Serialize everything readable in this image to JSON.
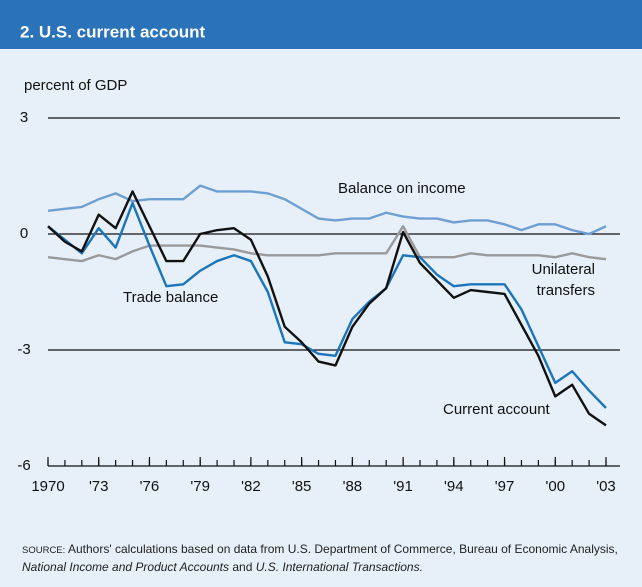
{
  "chart_data": {
    "type": "line",
    "title": "2. U.S. current account",
    "ylabel": "percent of GDP",
    "x": [
      1970,
      1971,
      1972,
      1973,
      1974,
      1975,
      1976,
      1977,
      1978,
      1979,
      1980,
      1981,
      1982,
      1983,
      1984,
      1985,
      1986,
      1987,
      1988,
      1989,
      1990,
      1991,
      1992,
      1993,
      1994,
      1995,
      1996,
      1997,
      1998,
      1999,
      2000,
      2001,
      2002,
      2003
    ],
    "xlim": [
      1970,
      2003
    ],
    "xticks": [
      1970,
      {
        "value": 1973,
        "label": "'73"
      },
      {
        "value": 1976,
        "label": "'76"
      },
      {
        "value": 1979,
        "label": "'79"
      },
      {
        "value": 1982,
        "label": "'82"
      },
      {
        "value": 1985,
        "label": "'85"
      },
      {
        "value": 1988,
        "label": "'88"
      },
      {
        "value": 1991,
        "label": "'91"
      },
      {
        "value": 1994,
        "label": "'94"
      },
      {
        "value": 1997,
        "label": "'97"
      },
      {
        "value": 2000,
        "label": "'00"
      },
      {
        "value": 2003,
        "label": "'03"
      }
    ],
    "xminorticks": [
      1970,
      1971,
      1972,
      1973,
      1974,
      1975,
      1976,
      1977,
      1978,
      1979,
      1980,
      1981,
      1982,
      1983,
      1984,
      1985,
      1986,
      1987,
      1988,
      1989,
      1990,
      1991,
      1992,
      1993,
      1994,
      1995,
      1996,
      1997,
      1998,
      1999,
      2000,
      2001,
      2002,
      2003
    ],
    "ylim": [
      -6,
      3
    ],
    "yticks": [
      -6,
      -3,
      0,
      3
    ],
    "grid": true,
    "series": [
      {
        "name": "Balance on income",
        "color": "#6e9fd3",
        "values": [
          0.6,
          0.65,
          0.7,
          0.9,
          1.05,
          0.85,
          0.9,
          0.9,
          0.9,
          1.25,
          1.1,
          1.1,
          1.1,
          1.05,
          0.9,
          0.65,
          0.4,
          0.35,
          0.4,
          0.4,
          0.55,
          0.45,
          0.4,
          0.4,
          0.3,
          0.35,
          0.35,
          0.25,
          0.1,
          0.25,
          0.25,
          0.1,
          0.0,
          0.2
        ]
      },
      {
        "name": "Unilateral transfers",
        "color": "#9a9a9a",
        "values": [
          -0.6,
          -0.65,
          -0.7,
          -0.55,
          -0.65,
          -0.45,
          -0.3,
          -0.3,
          -0.3,
          -0.3,
          -0.35,
          -0.4,
          -0.5,
          -0.55,
          -0.55,
          -0.55,
          -0.55,
          -0.5,
          -0.5,
          -0.5,
          -0.5,
          0.2,
          -0.6,
          -0.6,
          -0.6,
          -0.5,
          -0.55,
          -0.55,
          -0.55,
          -0.55,
          -0.6,
          -0.5,
          -0.6,
          -0.65
        ]
      },
      {
        "name": "Trade balance",
        "color": "#1b75bb",
        "values": [
          0.2,
          -0.15,
          -0.5,
          0.15,
          -0.35,
          0.8,
          -0.3,
          -1.35,
          -1.3,
          -0.95,
          -0.7,
          -0.55,
          -0.7,
          -1.5,
          -2.8,
          -2.85,
          -3.1,
          -3.15,
          -2.2,
          -1.75,
          -1.4,
          -0.55,
          -0.6,
          -1.05,
          -1.35,
          -1.3,
          -1.3,
          -1.3,
          -1.95,
          -2.9,
          -3.85,
          -3.55,
          -4.05,
          -4.5
        ]
      },
      {
        "name": "Current account",
        "color": "#111111",
        "values": [
          0.2,
          -0.2,
          -0.45,
          0.5,
          0.15,
          1.1,
          0.2,
          -0.7,
          -0.7,
          0.0,
          0.1,
          0.15,
          -0.15,
          -1.1,
          -2.4,
          -2.8,
          -3.3,
          -3.4,
          -2.4,
          -1.8,
          -1.4,
          0.05,
          -0.75,
          -1.2,
          -1.65,
          -1.45,
          -1.5,
          -1.55,
          -2.35,
          -3.15,
          -4.2,
          -3.9,
          -4.65,
          -4.95
        ]
      }
    ],
    "source": {
      "label": "SOURCE:",
      "parts": [
        " Authors' calculations based on data from U.S. Department of Commerce, Bureau of Economic Analysis, ",
        "National Income and Product Accounts",
        " and ",
        "U.S. International Transactions."
      ]
    }
  }
}
